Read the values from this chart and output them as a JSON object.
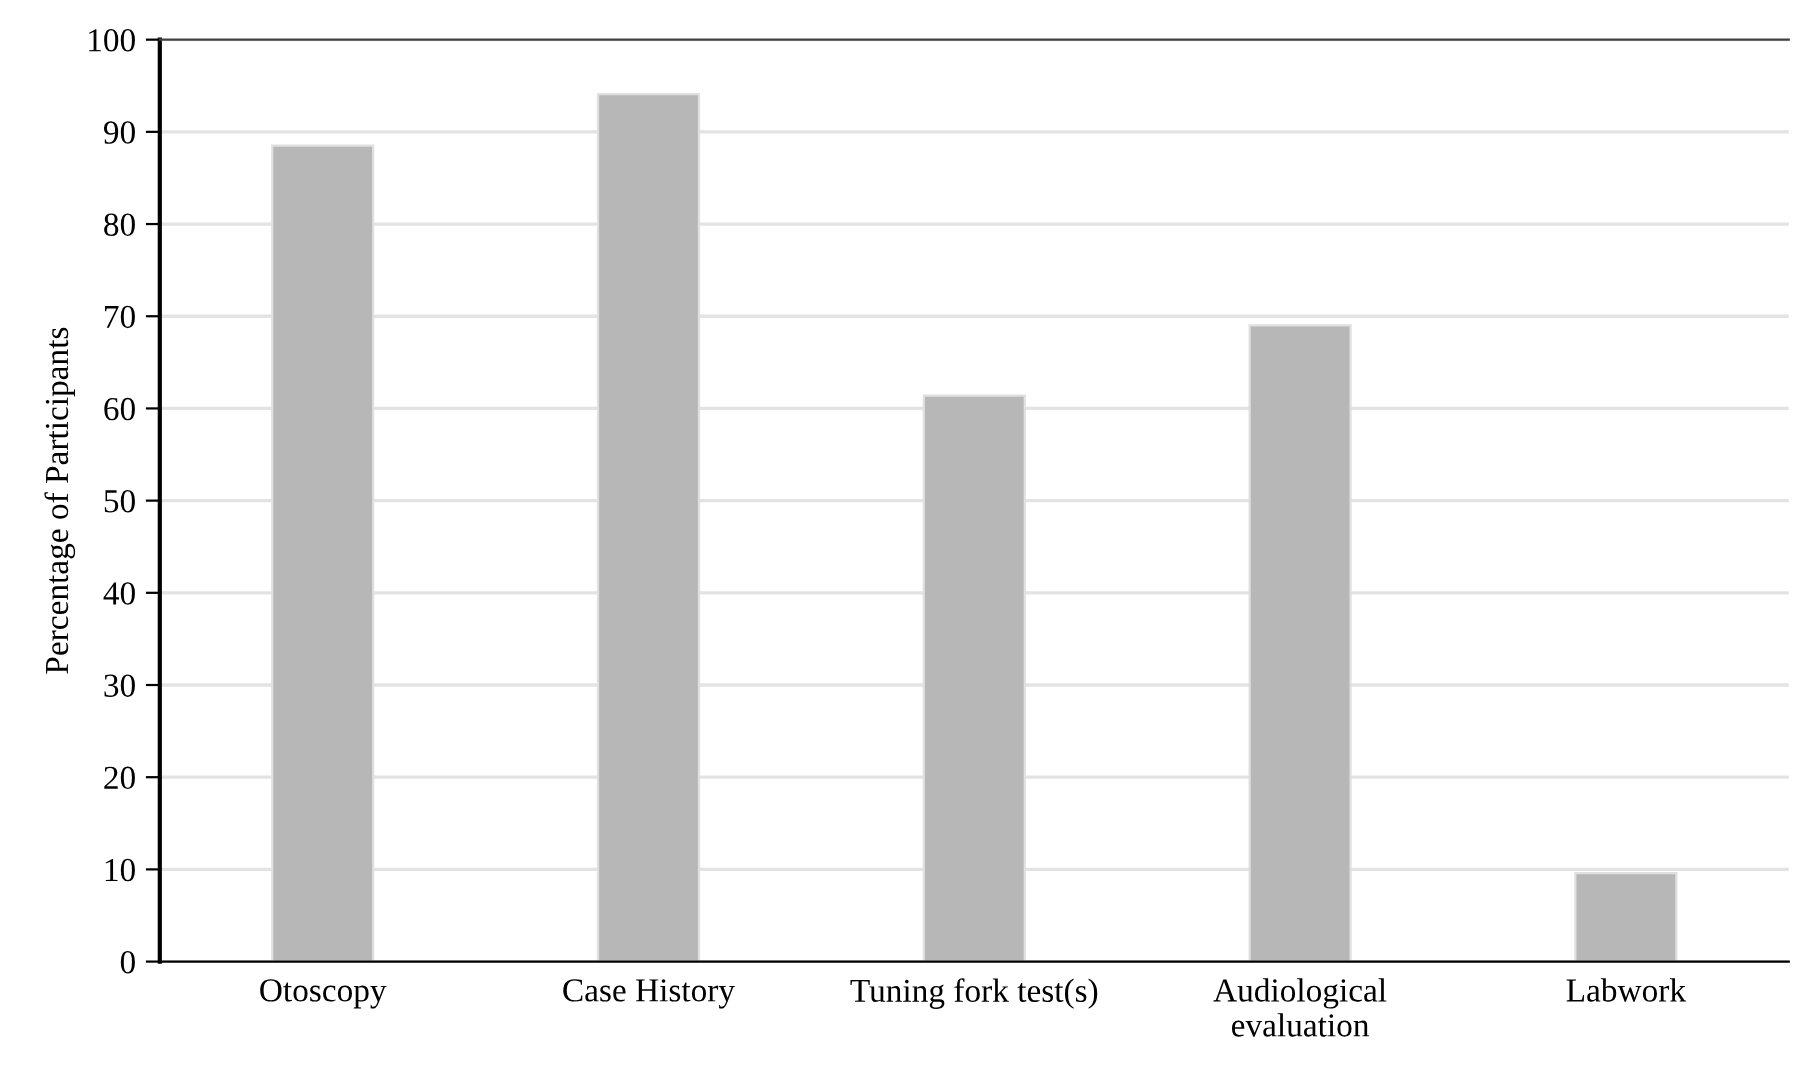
{
  "chart_data": {
    "type": "bar",
    "ylabel": "Percentage of Participants",
    "categories": [
      "Otoscopy",
      "Case History",
      "Tuning fork test(s)",
      "Audiological\nevaluation",
      "Labwork"
    ],
    "values": [
      88.5,
      94.1,
      61.4,
      69.0,
      9.6
    ],
    "color": "#b7b7b7",
    "ylim": [
      0,
      100
    ],
    "yticks": [
      0,
      10,
      20,
      30,
      40,
      50,
      60,
      70,
      80,
      90,
      100
    ],
    "grid": "y"
  }
}
